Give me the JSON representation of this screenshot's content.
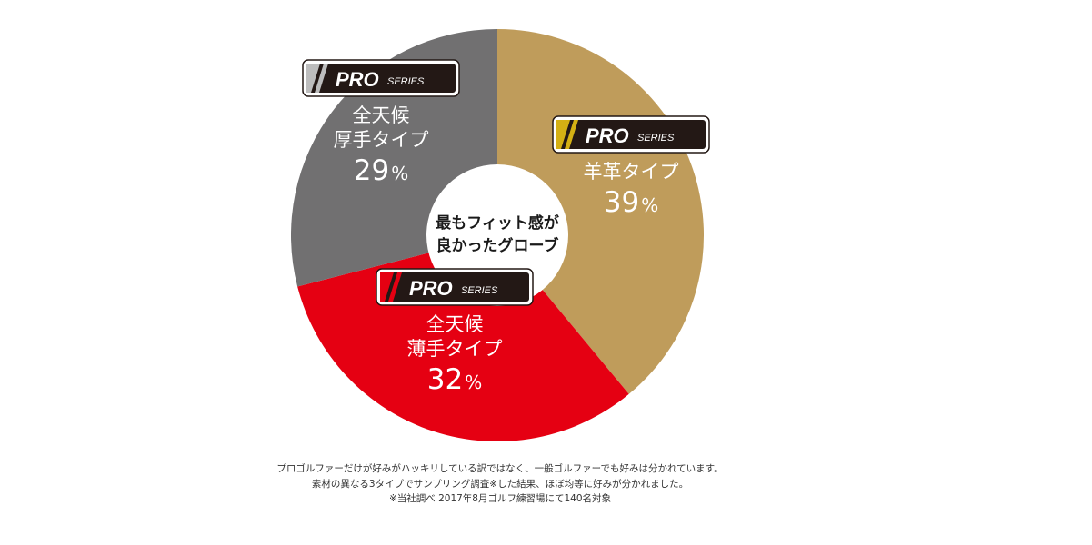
{
  "chart_data": {
    "type": "pie",
    "donut": true,
    "center_label": [
      "最もフィット感が",
      "良かったグローブ"
    ],
    "start": "12 o'clock, clockwise",
    "slices": [
      {
        "badge": "PRO",
        "badge_sub": "SERIES",
        "label_lines": [
          "羊革タイプ"
        ],
        "value": 39,
        "value_text": "39",
        "unit": "%",
        "color": "#bf9c5b",
        "badge_stripe_color": "#d4b014"
      },
      {
        "badge": "PRO",
        "badge_sub": "SERIES",
        "label_lines": [
          "全天候",
          "薄手タイプ"
        ],
        "value": 32,
        "value_text": "32",
        "unit": "%",
        "color": "#e50012",
        "badge_stripe_color": "#e50012"
      },
      {
        "badge": "PRO",
        "badge_sub": "SERIES",
        "label_lines": [
          "全天候",
          "厚手タイプ"
        ],
        "value": 29,
        "value_text": "29",
        "unit": "%",
        "color": "#717071",
        "badge_stripe_color": "#bdbdbd"
      }
    ]
  },
  "notes": [
    "プロゴルファーだけが好みがハッキリしている訳ではなく、一般ゴルファーでも好みは分かれています。",
    "素材の異なる3タイプでサンプリング調査※した結果、ほぼ均等に好みが分かれました。",
    "※当社調べ 2017年8月ゴルフ練習場にて140名対象"
  ]
}
